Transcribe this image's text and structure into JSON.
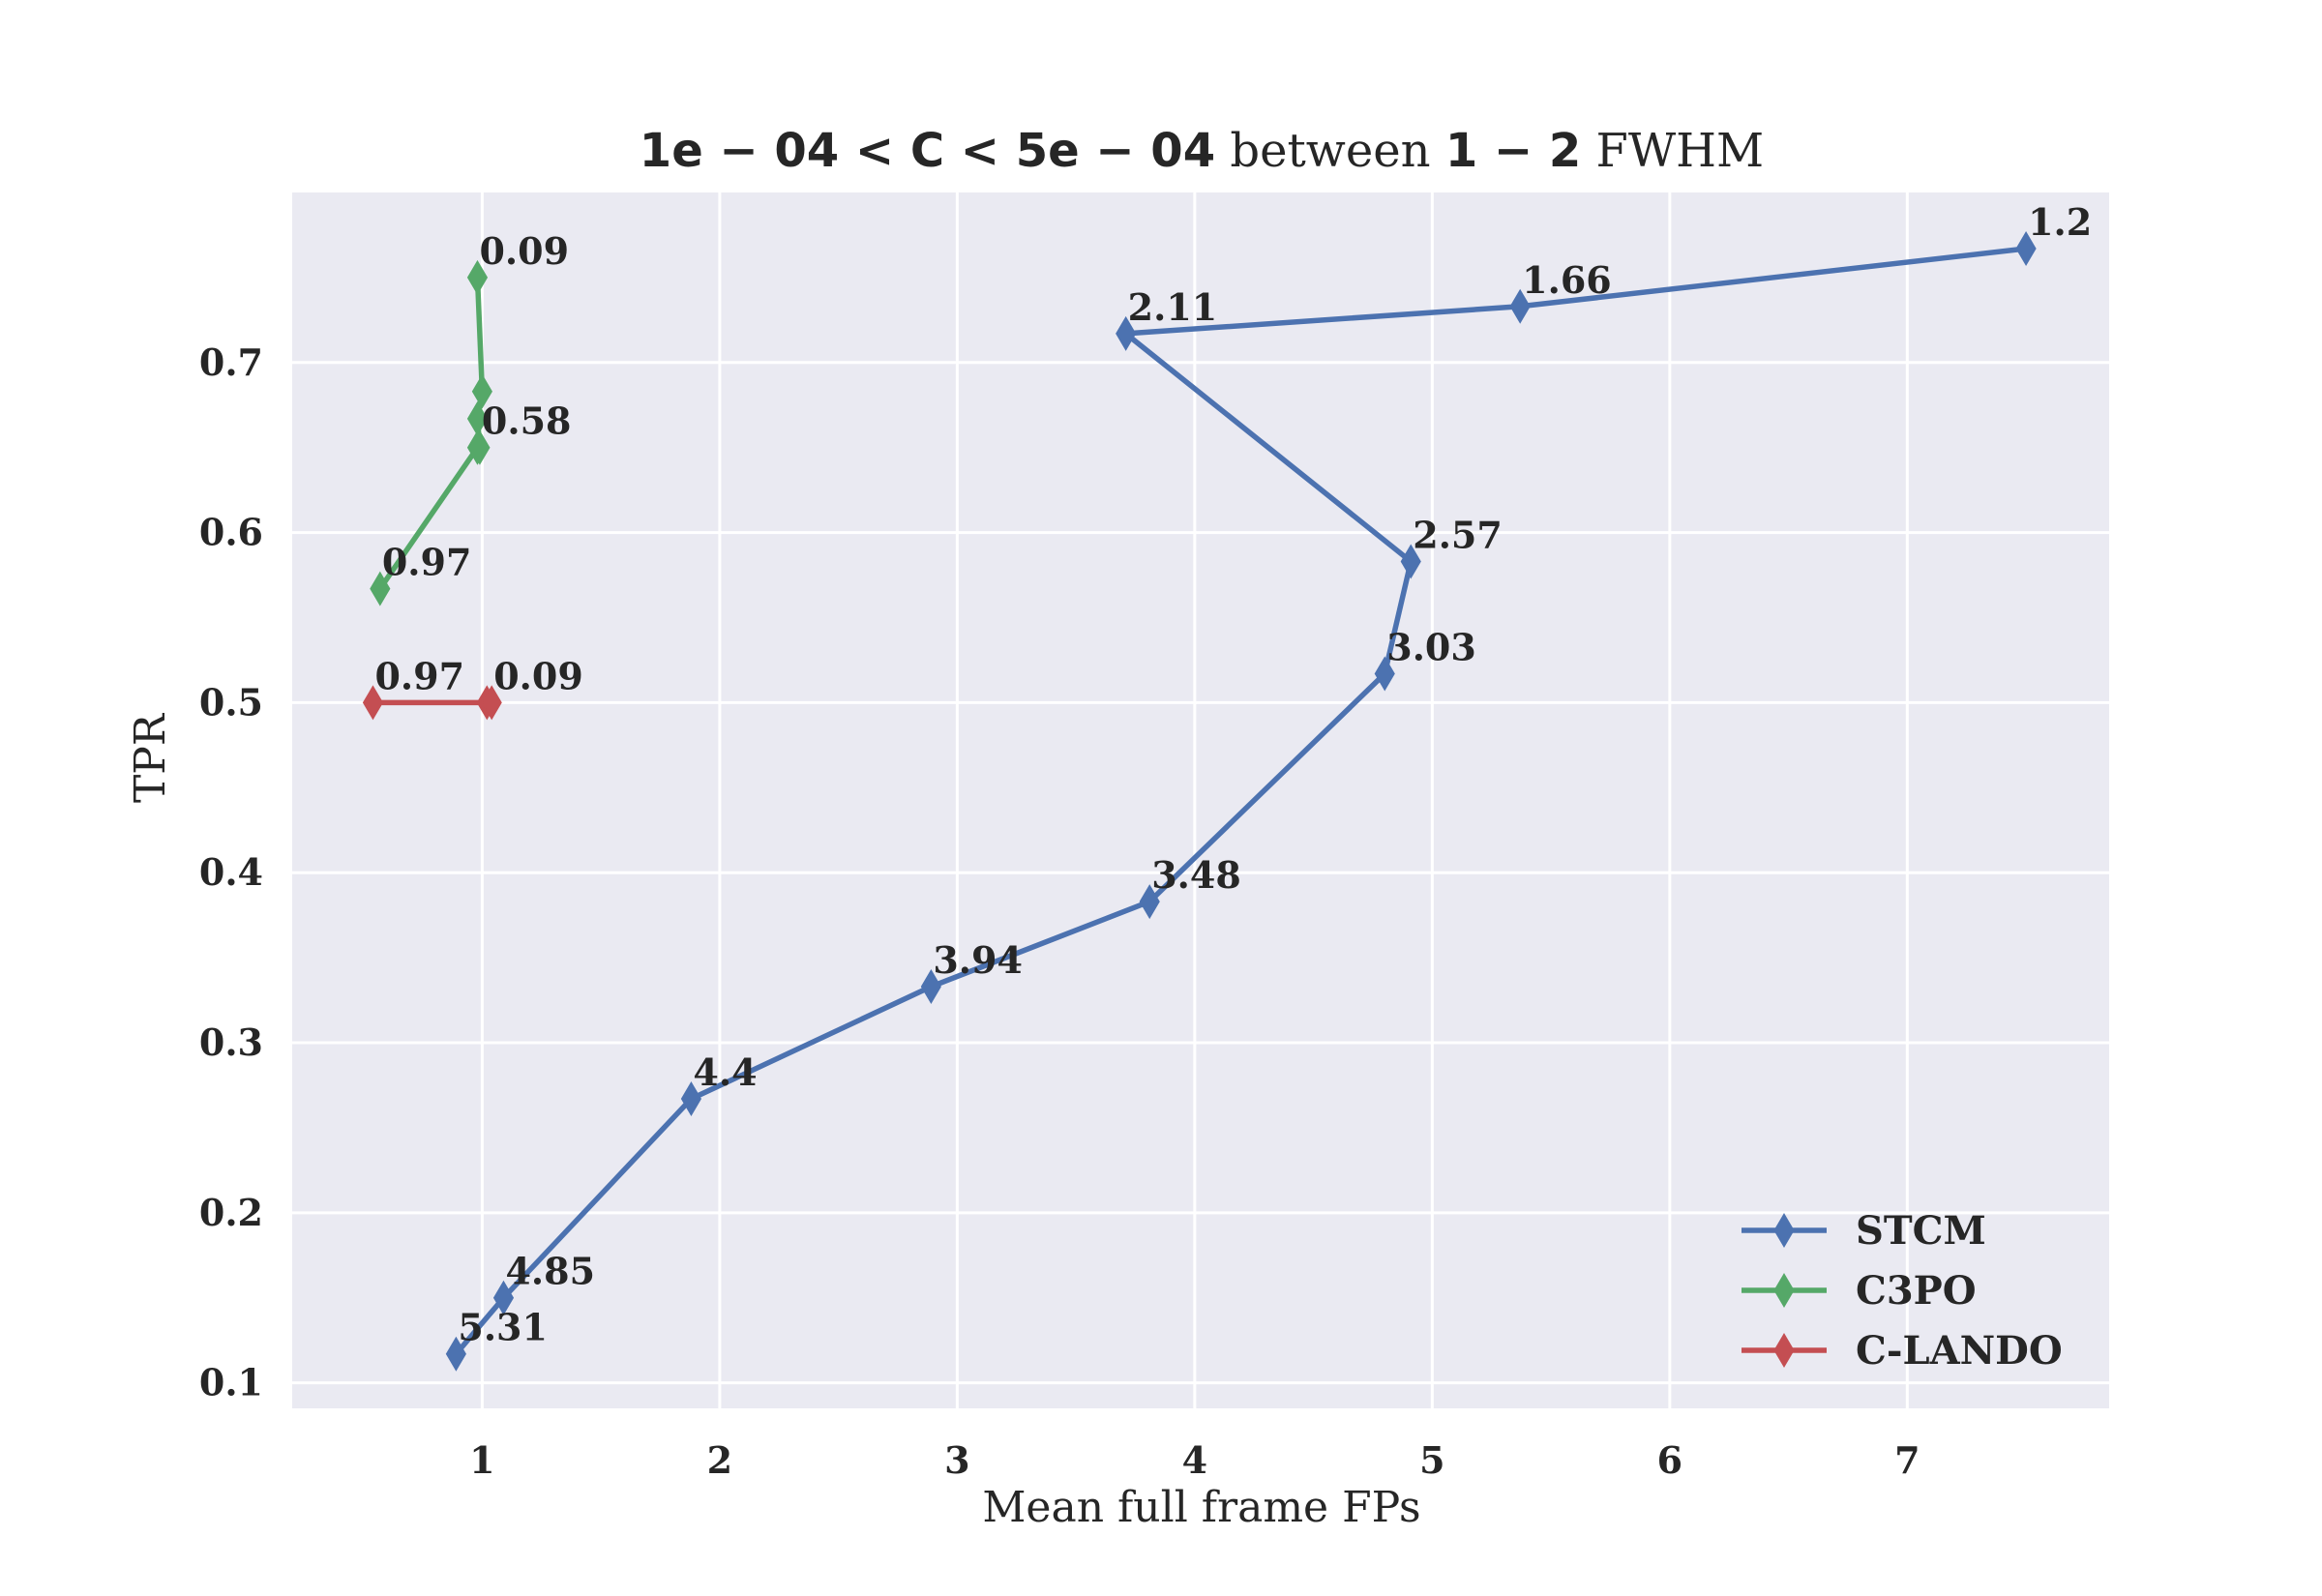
{
  "chart_data": {
    "type": "line",
    "title_parts": [
      {
        "text": "1e − 04 < C < 5e − 04",
        "style": "bold-math"
      },
      {
        "text": " between ",
        "style": "serif"
      },
      {
        "text": "1 − 2",
        "style": "bold-math"
      },
      {
        "text": " FWHM",
        "style": "serif"
      }
    ],
    "xlabel": "Mean full frame FPs",
    "ylabel": "TPR",
    "xlim": [
      0.2,
      7.85
    ],
    "ylim": [
      0.085,
      0.8
    ],
    "xticks": [
      1,
      2,
      3,
      4,
      5,
      6,
      7
    ],
    "yticks": [
      0.1,
      0.2,
      0.3,
      0.4,
      0.5,
      0.6,
      0.7
    ],
    "grid": true,
    "background": "#eaeaf2",
    "legend_position": "lower-right",
    "marker": "thin-diamond",
    "series": [
      {
        "name": "STCM",
        "color": "#4c72b0",
        "x": [
          0.89,
          1.09,
          1.88,
          2.89,
          3.81,
          4.8,
          4.91,
          3.71,
          5.37,
          7.5
        ],
        "y": [
          0.117,
          0.15,
          0.267,
          0.333,
          0.383,
          0.517,
          0.583,
          0.717,
          0.733,
          0.767
        ],
        "labels": [
          "5.31",
          "4.85",
          "4.4",
          "3.94",
          "3.48",
          "3.03",
          "2.57",
          "2.11",
          "1.66",
          "1.2"
        ]
      },
      {
        "name": "C3PO",
        "color": "#55a868",
        "x": [
          0.57,
          0.98,
          0.99,
          0.98,
          1.0,
          0.98
        ],
        "y": [
          0.567,
          0.65,
          0.65,
          0.667,
          0.683,
          0.75
        ],
        "labels": [
          "0.97",
          "",
          "0.58",
          "",
          "",
          "0.09"
        ]
      },
      {
        "name": "C-LANDO",
        "color": "#c44e52",
        "x": [
          0.54,
          1.02,
          1.04
        ],
        "y": [
          0.5,
          0.5,
          0.5
        ],
        "labels": [
          "0.97",
          "",
          "0.09"
        ]
      }
    ]
  }
}
